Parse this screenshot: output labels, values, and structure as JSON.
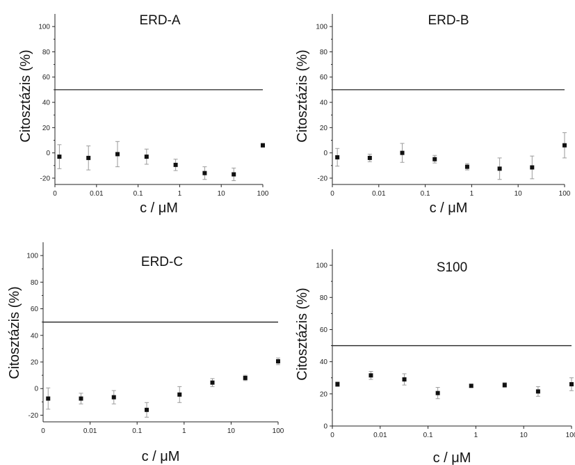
{
  "figure": {
    "axis_color": "#222222",
    "marker_color": "#111111",
    "errorbar_color": "#9a9a9a",
    "threshold_color": "#222222"
  },
  "chart_data": [
    {
      "type": "scatter",
      "title": "ERD-A",
      "xlabel": "c / μM",
      "ylabel": "Citosztázis (%)",
      "x_scale": "log",
      "xlim": [
        0.001,
        100
      ],
      "ylim": [
        -25,
        110
      ],
      "x_ticks": [
        0.001,
        0.01,
        0.1,
        1,
        10,
        100
      ],
      "x_tick_labels": [
        "0",
        "0.01",
        "0.1",
        "1",
        "10",
        "100"
      ],
      "y_ticks": [
        -20,
        0,
        20,
        40,
        60,
        80,
        100
      ],
      "y_tick_labels": [
        "-20",
        "0",
        "20",
        "40",
        "60",
        "80",
        "100"
      ],
      "threshold": 50,
      "x": [
        0.00128,
        0.0064,
        0.032,
        0.16,
        0.8,
        4,
        20,
        100
      ],
      "y": [
        -3,
        -4,
        -1,
        -3,
        -9.5,
        -16,
        -17,
        6
      ],
      "error": [
        9.5,
        9.5,
        10,
        6,
        4.5,
        5,
        5,
        1.5
      ]
    },
    {
      "type": "scatter",
      "title": "ERD-B",
      "xlabel": "c / μM",
      "ylabel": "Citosztázis (%)",
      "x_scale": "log",
      "xlim": [
        0.001,
        100
      ],
      "ylim": [
        -25,
        110
      ],
      "x_ticks": [
        0.001,
        0.01,
        0.1,
        1,
        10,
        100
      ],
      "x_tick_labels": [
        "0",
        "0.01",
        "0.1",
        "1",
        "10",
        "100"
      ],
      "y_ticks": [
        -20,
        0,
        20,
        40,
        60,
        80,
        100
      ],
      "y_tick_labels": [
        "-20",
        "0",
        "20",
        "40",
        "60",
        "80",
        "100"
      ],
      "threshold": 50,
      "x": [
        0.00128,
        0.0064,
        0.032,
        0.16,
        0.8,
        4,
        20,
        100
      ],
      "y": [
        -3.5,
        -4,
        0,
        -5,
        -11,
        -12.5,
        -11.5,
        6
      ],
      "error": [
        7,
        3,
        7.5,
        3,
        2.5,
        8.5,
        9,
        10
      ]
    },
    {
      "type": "scatter",
      "title": "ERD-C",
      "xlabel": "c / μM",
      "ylabel": "Citosztázis (%)",
      "x_scale": "log",
      "xlim": [
        0.001,
        100
      ],
      "ylim": [
        -25,
        110
      ],
      "x_ticks": [
        0.01,
        0.1,
        1,
        10,
        100
      ],
      "x_tick_labels": [
        "0.01",
        "0.1",
        "1",
        "10",
        "100"
      ],
      "y_ticks": [
        -20,
        0,
        20,
        40,
        60,
        80,
        100
      ],
      "y_tick_labels": [
        "-20",
        "0",
        "20",
        "40",
        "60",
        "80",
        "100"
      ],
      "extra_x_tick_label": "0",
      "threshold": 50,
      "x": [
        0.00128,
        0.0064,
        0.032,
        0.16,
        0.8,
        4,
        20,
        100
      ],
      "y": [
        -7.5,
        -7.5,
        -6.5,
        -16,
        -4.5,
        4.5,
        8,
        20.5
      ],
      "error": [
        8,
        4,
        5,
        5.5,
        6,
        3,
        2,
        2.5
      ]
    },
    {
      "type": "scatter",
      "title": "S100",
      "xlabel": "c / μM",
      "ylabel": "Citosztázis (%)",
      "x_scale": "log",
      "xlim": [
        0.001,
        100
      ],
      "ylim": [
        0,
        110
      ],
      "x_ticks": [
        0.001,
        0.01,
        0.1,
        1,
        10,
        100
      ],
      "x_tick_labels": [
        "0",
        "0.01",
        "0.1",
        "1",
        "10",
        "100"
      ],
      "y_ticks": [
        0,
        20,
        40,
        60,
        80,
        100
      ],
      "y_tick_labels": [
        "0",
        "20",
        "40",
        "60",
        "80",
        "100"
      ],
      "threshold": 50,
      "x": [
        0.00128,
        0.0064,
        0.032,
        0.16,
        0.8,
        4,
        20,
        100
      ],
      "y": [
        26,
        31.5,
        29,
        20.5,
        25,
        25.5,
        21.5,
        26
      ],
      "error": [
        1.5,
        2.5,
        3.5,
        3.5,
        1,
        1.5,
        3,
        4
      ]
    }
  ]
}
